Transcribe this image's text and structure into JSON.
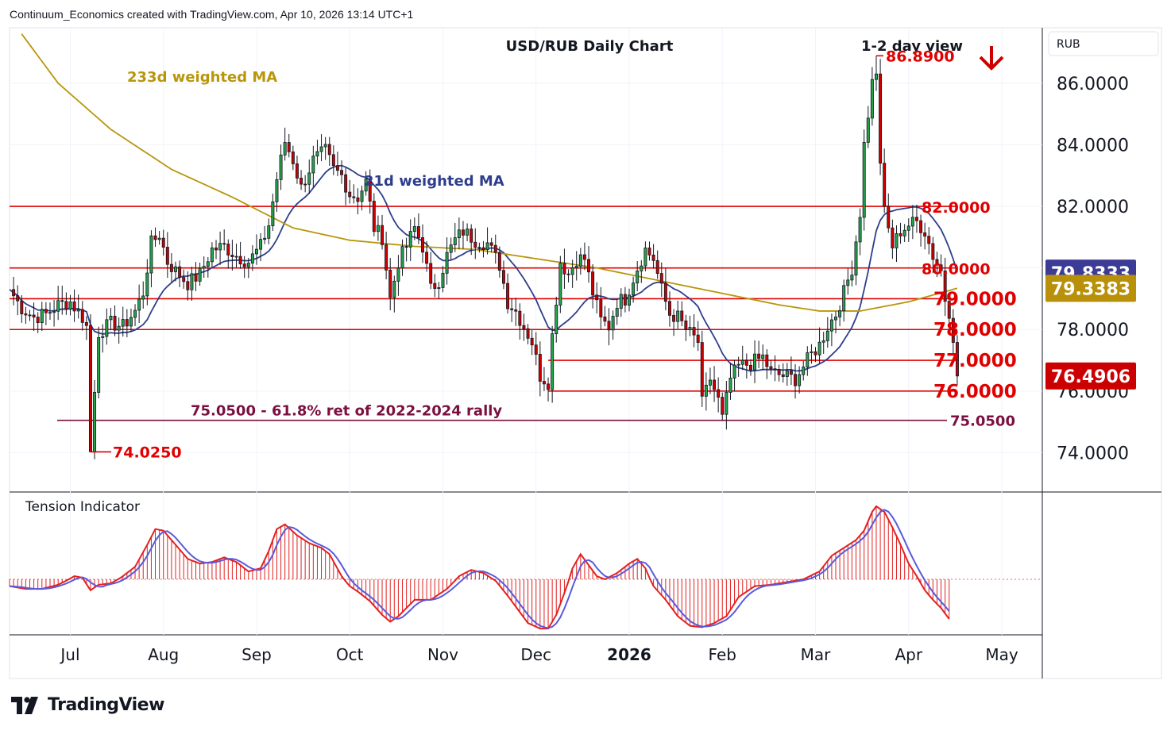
{
  "header": {
    "attribution": "Continuum_Economics created with TradingView.com, Apr 10, 2026 13:14 UTC+1"
  },
  "brand": {
    "name": "TradingView"
  },
  "colors": {
    "up": "#26a34a",
    "down": "#cc0000",
    "level": "#e00000",
    "fib": "#7a1040",
    "ma21": "#2e3e8c",
    "ma233": "#b8960c",
    "price_badge": "#cc0000",
    "ma21_badge": "#3c3c96",
    "ma233_badge": "#b8900a",
    "tension_fast": "#e32020",
    "tension_slow": "#5a5adc"
  },
  "chart_data": [
    {
      "type": "candlestick",
      "title": "USD/RUB Daily Chart",
      "subtitle": "1-2 day view",
      "view_arrow": "down-arrow-icon",
      "axis_unit": "RUB",
      "ylim": [
        72.8,
        87.8
      ],
      "yticks": [
        "74.0000",
        "76.0000",
        "78.0000",
        "80.0000",
        "82.0000",
        "84.0000",
        "86.0000"
      ],
      "xtick_labels": [
        "Jul",
        "Aug",
        "Sep",
        "Oct",
        "Nov",
        "Dec",
        "2026",
        "Feb",
        "Mar",
        "Apr",
        "May"
      ],
      "xtick_index": [
        15,
        38,
        61,
        84,
        107,
        130,
        153,
        176,
        199,
        222,
        245
      ],
      "xtick_bold": [
        false,
        false,
        false,
        false,
        false,
        false,
        true,
        false,
        false,
        false,
        false
      ],
      "levels": [
        {
          "value": 82.0,
          "label": "82.0000",
          "x_from": 0
        },
        {
          "value": 80.0,
          "label": "80.0000",
          "x_from": 0
        },
        {
          "value": 79.0,
          "label": "79.0000",
          "x_from": 0
        },
        {
          "value": 78.0,
          "label": "78.0000",
          "x_from": 0
        },
        {
          "value": 77.0,
          "label": "77.0000",
          "x_from": 133
        },
        {
          "value": 76.0,
          "label": "76.0000",
          "x_from": 133
        }
      ],
      "fib": {
        "value": 75.05,
        "label": "75.0500",
        "annotation": "75.0500 - 61.8% ret of 2022-2024 rally"
      },
      "extremes": [
        {
          "label": "86.8900",
          "value": 86.89,
          "index": 214
        },
        {
          "label": "74.0250",
          "value": 74.025,
          "index": 20
        }
      ],
      "ma_labels": [
        {
          "name": "233d weighted MA"
        },
        {
          "name": "21d weighted MA"
        }
      ],
      "badges": [
        {
          "label": "79.8333",
          "value": 79.8333,
          "series": "21d weighted MA"
        },
        {
          "label": "79.3383",
          "value": 79.3383,
          "series": "233d weighted MA"
        },
        {
          "label": "76.4906",
          "value": 76.4906,
          "series": "USD/RUB"
        }
      ],
      "anchors": [
        [
          0,
          79.3
        ],
        [
          3,
          78.7
        ],
        [
          6,
          78.4
        ],
        [
          9,
          78.5
        ],
        [
          12,
          78.8
        ],
        [
          15,
          78.9
        ],
        [
          18,
          78.4
        ],
        [
          19,
          78.1
        ],
        [
          20,
          74.03
        ],
        [
          22,
          77.9
        ],
        [
          25,
          78.2
        ],
        [
          28,
          78.1
        ],
        [
          31,
          78.6
        ],
        [
          33,
          79.2
        ],
        [
          35,
          80.8
        ],
        [
          37,
          81.1
        ],
        [
          39,
          80.2
        ],
        [
          41,
          79.9
        ],
        [
          44,
          79.5
        ],
        [
          47,
          79.8
        ],
        [
          50,
          80.6
        ],
        [
          53,
          80.7
        ],
        [
          56,
          80.4
        ],
        [
          59,
          80.2
        ],
        [
          62,
          80.7
        ],
        [
          64,
          81.4
        ],
        [
          66,
          82.9
        ],
        [
          68,
          84.1
        ],
        [
          70,
          83.5
        ],
        [
          72,
          82.6
        ],
        [
          75,
          83.5
        ],
        [
          78,
          83.8
        ],
        [
          80,
          83.2
        ],
        [
          82,
          83.0
        ],
        [
          84,
          82.4
        ],
        [
          86,
          82.3
        ],
        [
          88,
          82.8
        ],
        [
          90,
          81.3
        ],
        [
          92,
          81.0
        ],
        [
          94,
          79.0
        ],
        [
          96,
          80.2
        ],
        [
          98,
          80.7
        ],
        [
          100,
          81.3
        ],
        [
          102,
          80.7
        ],
        [
          104,
          79.3
        ],
        [
          106,
          79.6
        ],
        [
          108,
          80.4
        ],
        [
          110,
          80.9
        ],
        [
          112,
          81.2
        ],
        [
          115,
          80.9
        ],
        [
          118,
          80.8
        ],
        [
          121,
          80.1
        ],
        [
          123,
          78.9
        ],
        [
          125,
          78.6
        ],
        [
          127,
          78.1
        ],
        [
          129,
          77.6
        ],
        [
          131,
          76.5
        ],
        [
          133,
          76.3
        ],
        [
          134,
          77.8
        ],
        [
          136,
          80.2
        ],
        [
          138,
          79.8
        ],
        [
          140,
          80.3
        ],
        [
          142,
          80.3
        ],
        [
          144,
          79.2
        ],
        [
          146,
          78.3
        ],
        [
          148,
          78.1
        ],
        [
          150,
          78.9
        ],
        [
          152,
          79.0
        ],
        [
          155,
          80.0
        ],
        [
          157,
          80.6
        ],
        [
          159,
          80.3
        ],
        [
          161,
          79.3
        ],
        [
          163,
          78.5
        ],
        [
          165,
          78.4
        ],
        [
          167,
          78.0
        ],
        [
          170,
          77.6
        ],
        [
          171,
          75.6
        ],
        [
          173,
          76.4
        ],
        [
          175,
          75.7
        ],
        [
          176,
          75.1
        ],
        [
          178,
          76.4
        ],
        [
          180,
          76.8
        ],
        [
          183,
          76.9
        ],
        [
          186,
          77.1
        ],
        [
          188,
          76.6
        ],
        [
          191,
          76.5
        ],
        [
          194,
          76.4
        ],
        [
          196,
          76.8
        ],
        [
          198,
          77.2
        ],
        [
          200,
          77.5
        ],
        [
          202,
          78.1
        ],
        [
          204,
          78.5
        ],
        [
          206,
          79.2
        ],
        [
          208,
          80.0
        ],
        [
          210,
          81.8
        ],
        [
          211,
          84.0
        ],
        [
          213,
          86.0
        ],
        [
          214,
          86.3
        ],
        [
          215,
          83.5
        ],
        [
          216,
          81.8
        ],
        [
          218,
          80.7
        ],
        [
          220,
          81.2
        ],
        [
          222,
          81.4
        ],
        [
          224,
          81.5
        ],
        [
          226,
          81.2
        ],
        [
          228,
          80.4
        ],
        [
          230,
          79.9
        ],
        [
          231,
          79.0
        ],
        [
          232,
          78.6
        ],
        [
          233,
          77.8
        ],
        [
          234,
          76.49
        ]
      ],
      "x_range": [
        0,
        255
      ]
    },
    {
      "type": "line",
      "title": "Tension Indicator",
      "zero": 0,
      "ylim": [
        -85,
        110
      ],
      "anchors": [
        [
          0,
          -10
        ],
        [
          4,
          -14
        ],
        [
          8,
          -14
        ],
        [
          12,
          -8
        ],
        [
          16,
          4
        ],
        [
          18,
          2
        ],
        [
          20,
          -16
        ],
        [
          22,
          -8
        ],
        [
          25,
          -6
        ],
        [
          28,
          4
        ],
        [
          31,
          16
        ],
        [
          34,
          44
        ],
        [
          36,
          64
        ],
        [
          38,
          62
        ],
        [
          41,
          44
        ],
        [
          44,
          26
        ],
        [
          47,
          20
        ],
        [
          50,
          22
        ],
        [
          53,
          28
        ],
        [
          56,
          22
        ],
        [
          59,
          10
        ],
        [
          62,
          14
        ],
        [
          64,
          36
        ],
        [
          66,
          64
        ],
        [
          68,
          70
        ],
        [
          71,
          56
        ],
        [
          74,
          46
        ],
        [
          77,
          40
        ],
        [
          79,
          32
        ],
        [
          82,
          4
        ],
        [
          84,
          -10
        ],
        [
          86,
          -18
        ],
        [
          89,
          -32
        ],
        [
          92,
          -52
        ],
        [
          94,
          -62
        ],
        [
          96,
          -54
        ],
        [
          100,
          -30
        ],
        [
          104,
          -30
        ],
        [
          108,
          -14
        ],
        [
          111,
          4
        ],
        [
          114,
          12
        ],
        [
          117,
          8
        ],
        [
          120,
          -2
        ],
        [
          123,
          -24
        ],
        [
          125,
          -40
        ],
        [
          128,
          -64
        ],
        [
          131,
          -72
        ],
        [
          133,
          -72
        ],
        [
          135,
          -52
        ],
        [
          137,
          -20
        ],
        [
          139,
          14
        ],
        [
          141,
          32
        ],
        [
          143,
          18
        ],
        [
          145,
          4
        ],
        [
          147,
          0
        ],
        [
          150,
          8
        ],
        [
          153,
          20
        ],
        [
          155,
          26
        ],
        [
          157,
          14
        ],
        [
          159,
          -10
        ],
        [
          162,
          -30
        ],
        [
          165,
          -54
        ],
        [
          168,
          -68
        ],
        [
          171,
          -70
        ],
        [
          174,
          -64
        ],
        [
          177,
          -54
        ],
        [
          180,
          -26
        ],
        [
          184,
          -10
        ],
        [
          188,
          -8
        ],
        [
          192,
          -4
        ],
        [
          196,
          0
        ],
        [
          200,
          10
        ],
        [
          203,
          30
        ],
        [
          206,
          40
        ],
        [
          209,
          50
        ],
        [
          211,
          62
        ],
        [
          213,
          86
        ],
        [
          214,
          93
        ],
        [
          216,
          86
        ],
        [
          218,
          66
        ],
        [
          220,
          44
        ],
        [
          222,
          20
        ],
        [
          224,
          4
        ],
        [
          226,
          -16
        ],
        [
          228,
          -30
        ],
        [
          230,
          -42
        ],
        [
          232,
          -58
        ]
      ]
    }
  ],
  "x_axis": {
    "labels": [
      "Jul",
      "Aug",
      "Sep",
      "Oct",
      "Nov",
      "Dec",
      "2026",
      "Feb",
      "Mar",
      "Apr",
      "May"
    ]
  }
}
